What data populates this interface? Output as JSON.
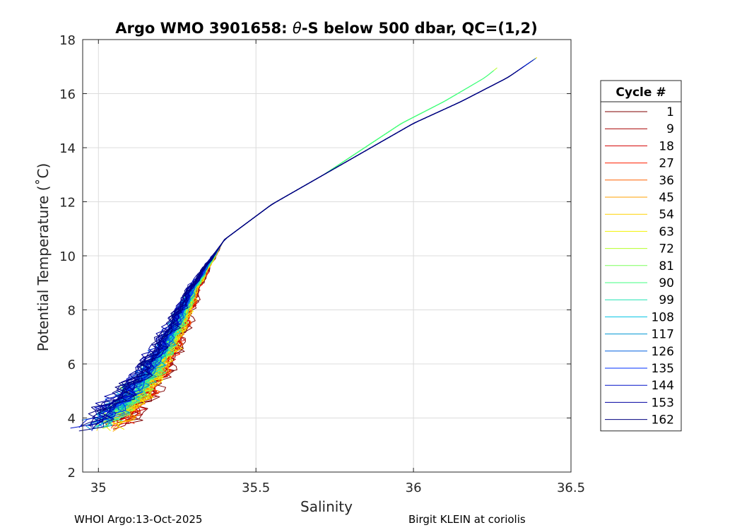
{
  "chart_data": {
    "type": "line",
    "title": "Argo WMO 3901658: θ-S below 500 dbar,  QC=(1,2)",
    "title_parts": {
      "prefix": "Argo WMO 3901658: ",
      "theta": "θ",
      "suffix": "-S below 500 dbar,  QC=(1,2)"
    },
    "xlabel": "Salinity",
    "ylabel": "Potential Temperature (˚C)",
    "xlim": [
      34.95,
      36.5
    ],
    "ylim": [
      2,
      18
    ],
    "xticks": [
      35,
      35.5,
      36,
      36.5
    ],
    "xtick_labels": [
      "35",
      "35.5",
      "36",
      "36.5"
    ],
    "yticks": [
      2,
      4,
      6,
      8,
      10,
      12,
      14,
      16,
      18
    ],
    "ytick_labels": [
      "2",
      "4",
      "6",
      "8",
      "10",
      "12",
      "14",
      "16",
      "18"
    ],
    "grid": true,
    "legend": {
      "title": "Cycle #",
      "position": "right",
      "entries": [
        {
          "label": "1",
          "color": "#7f0000"
        },
        {
          "label": "9",
          "color": "#a80000"
        },
        {
          "label": "18",
          "color": "#d20000"
        },
        {
          "label": "27",
          "color": "#ff1f00"
        },
        {
          "label": "36",
          "color": "#ff6000"
        },
        {
          "label": "45",
          "color": "#ffa000"
        },
        {
          "label": "54",
          "color": "#ffd200"
        },
        {
          "label": "63",
          "color": "#f2f200"
        },
        {
          "label": "72",
          "color": "#b6ff29"
        },
        {
          "label": "81",
          "color": "#7cff5c"
        },
        {
          "label": "90",
          "color": "#40ff80"
        },
        {
          "label": "99",
          "color": "#1ee3b4"
        },
        {
          "label": "108",
          "color": "#00c3e3"
        },
        {
          "label": "117",
          "color": "#0096d2"
        },
        {
          "label": "126",
          "color": "#0060e0"
        },
        {
          "label": "135",
          "color": "#002fff"
        },
        {
          "label": "144",
          "color": "#0010c8"
        },
        {
          "label": "153",
          "color": "#0000a0"
        },
        {
          "label": "162",
          "color": "#00007f"
        }
      ]
    },
    "core_curve": {
      "salinity": [
        35.0,
        35.05,
        35.1,
        35.15,
        35.2,
        35.25,
        35.3,
        35.4,
        35.55,
        35.7,
        35.85,
        36.0,
        36.15,
        36.3,
        36.4
      ],
      "temperature": [
        3.6,
        4.2,
        4.8,
        5.5,
        6.4,
        7.5,
        8.8,
        10.6,
        11.9,
        12.9,
        13.9,
        14.9,
        15.7,
        16.6,
        17.4
      ]
    }
  },
  "footer": {
    "left": "WHOI Argo:13-Oct-2025",
    "right": "Birgit KLEIN at coriolis"
  }
}
